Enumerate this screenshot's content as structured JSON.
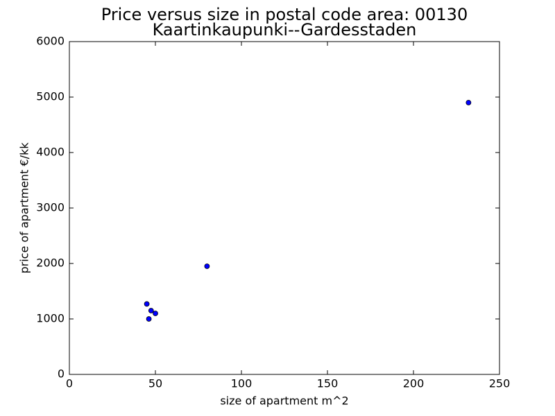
{
  "chart_data": {
    "type": "scatter",
    "title_line1": "Price versus size in postal code area: 00130",
    "title_line2": "Kaartinkaupunki--Gardesstaden",
    "xlabel": "size of apartment m^2",
    "ylabel": "price of apartment €/kk",
    "xlim": [
      0,
      250
    ],
    "ylim": [
      0,
      6000
    ],
    "x_ticks": [
      0,
      50,
      100,
      150,
      200,
      250
    ],
    "y_ticks": [
      0,
      1000,
      2000,
      3000,
      4000,
      5000,
      6000
    ],
    "grid": false,
    "marker_color": "#0000ff",
    "marker_edge_color": "#000000",
    "points": [
      {
        "x": 45,
        "y": 1270
      },
      {
        "x": 47.5,
        "y": 1150
      },
      {
        "x": 50,
        "y": 1100
      },
      {
        "x": 46.2,
        "y": 1000
      },
      {
        "x": 80,
        "y": 1950
      },
      {
        "x": 232,
        "y": 4900
      }
    ]
  }
}
